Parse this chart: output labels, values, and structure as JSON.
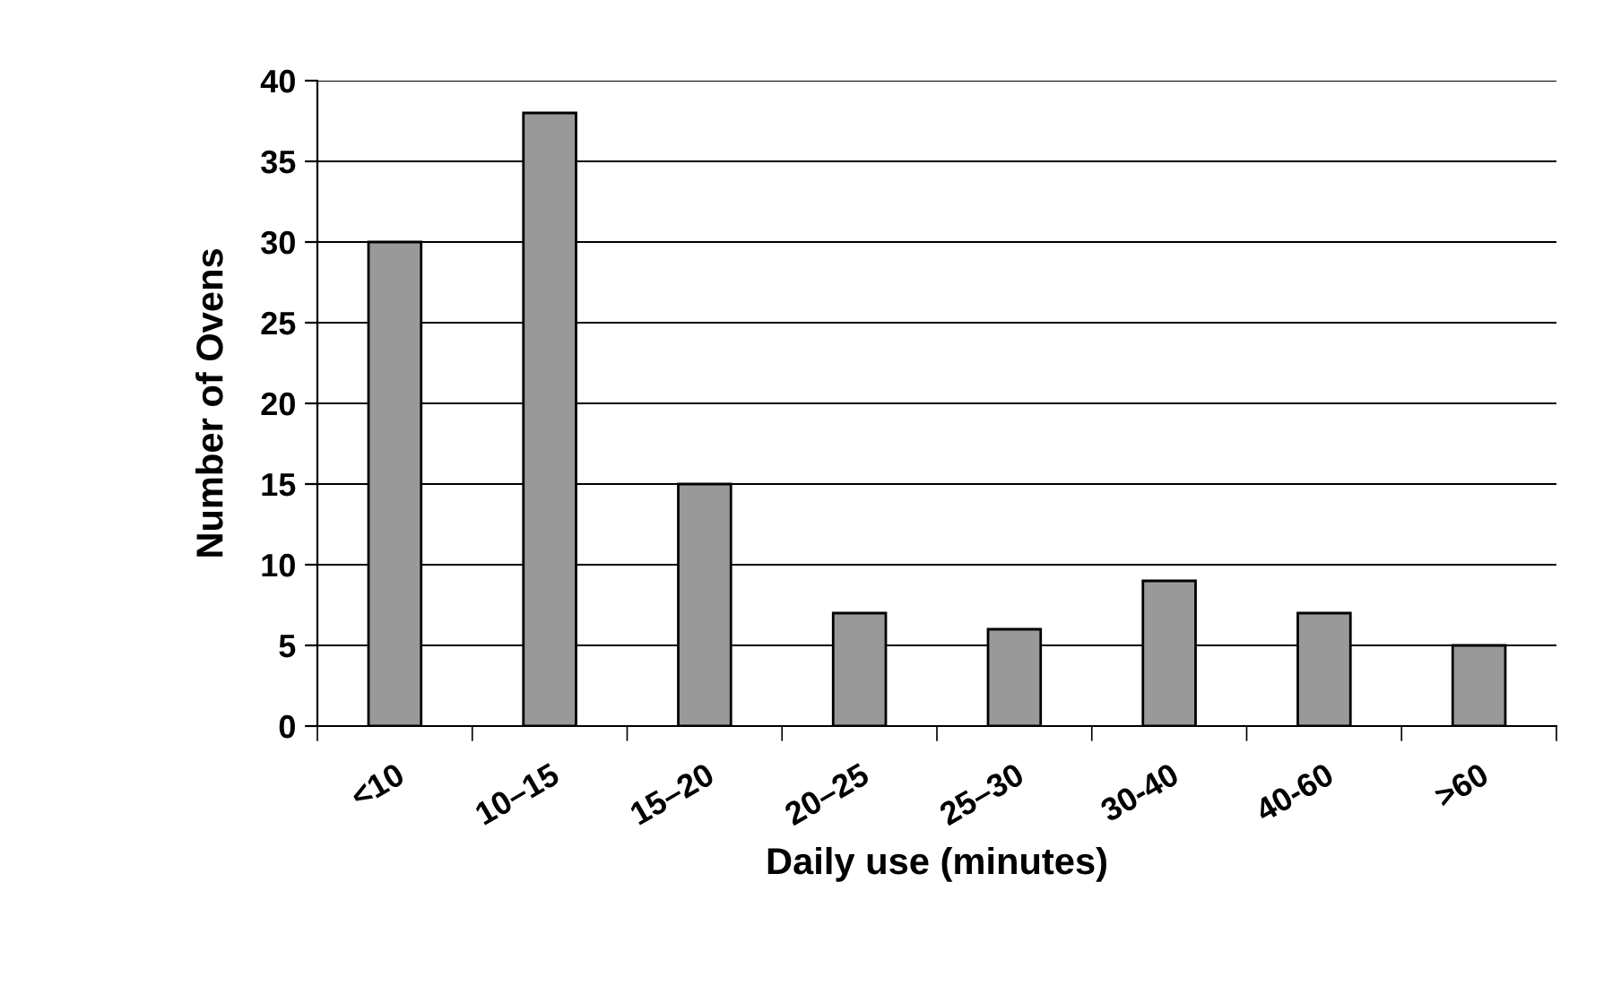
{
  "chart_data": {
    "type": "bar",
    "xlabel": "Daily use (minutes)",
    "ylabel": "Number of Ovens",
    "categories": [
      "<10",
      "10–15",
      "15–20",
      "20–25",
      "25–30",
      "30-40",
      "40-60",
      ">60"
    ],
    "values": [
      30,
      38,
      15,
      7,
      6,
      9,
      7,
      5
    ],
    "color": "#999999",
    "ylim": [
      0,
      40
    ],
    "yticks": [
      0,
      5,
      10,
      15,
      20,
      25,
      30,
      35,
      40
    ],
    "grid": "y",
    "legend": false
  }
}
